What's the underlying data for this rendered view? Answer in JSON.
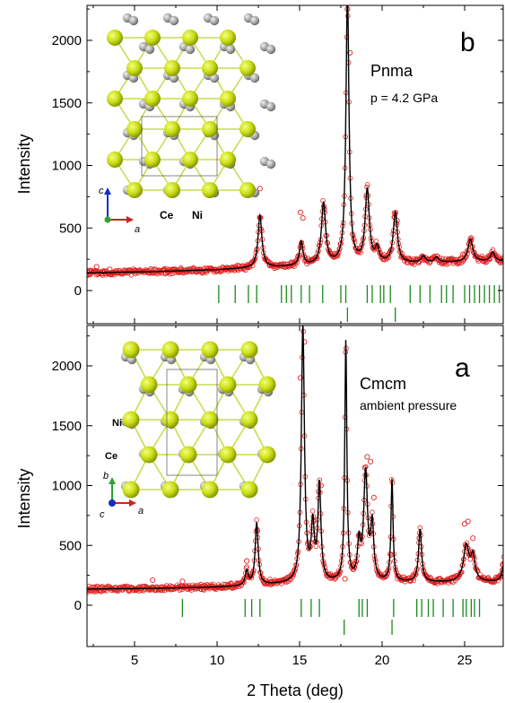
{
  "chart_data": [
    {
      "panel": "top",
      "type": "scatter",
      "panel_letter": "b",
      "space_group": "Pnma",
      "condition": "p = 4.2 GPa",
      "ylabel": "Intensity",
      "xlabel": "",
      "xlim": [
        2,
        27.6
      ],
      "ylim": [
        -300,
        2300
      ],
      "yticks": [
        0,
        500,
        1000,
        1500,
        2000
      ],
      "xticks": [
        5,
        10,
        15,
        20,
        25
      ],
      "inset_atom_labels": [
        "Ce",
        "Ni"
      ],
      "inset_axis_labels": [
        "c",
        "a"
      ],
      "background": [
        [
          2,
          140
        ],
        [
          6,
          150
        ],
        [
          10,
          165
        ],
        [
          11.5,
          175
        ],
        [
          13.5,
          185
        ],
        [
          16,
          200
        ],
        [
          19,
          215
        ],
        [
          22,
          220
        ],
        [
          27.6,
          235
        ]
      ],
      "peaks": [
        {
          "x": 12.6,
          "height": 420,
          "width": 0.28
        },
        {
          "x": 15.1,
          "height": 190,
          "width": 0.25
        },
        {
          "x": 16.45,
          "height": 490,
          "width": 0.3
        },
        {
          "x": 17.9,
          "height": 2150,
          "width": 0.22
        },
        {
          "x": 19.1,
          "height": 580,
          "width": 0.3
        },
        {
          "x": 19.7,
          "height": 110,
          "width": 0.25
        },
        {
          "x": 20.8,
          "height": 400,
          "width": 0.3
        },
        {
          "x": 22.5,
          "height": 50,
          "width": 0.3
        },
        {
          "x": 23.3,
          "height": 40,
          "width": 0.3
        },
        {
          "x": 25.35,
          "height": 180,
          "width": 0.35
        },
        {
          "x": 26.7,
          "height": 70,
          "width": 0.3
        }
      ],
      "obs_points": [
        [
          2.3,
          160
        ],
        [
          2.7,
          190
        ],
        [
          3.1,
          150
        ],
        [
          3.5,
          170
        ],
        [
          4.0,
          140
        ],
        [
          6.5,
          160
        ],
        [
          7.6,
          150
        ],
        [
          11.8,
          190
        ],
        [
          12.6,
          815
        ],
        [
          15.05,
          625
        ],
        [
          15.2,
          580
        ],
        [
          16.5,
          650
        ],
        [
          17.9,
          2250
        ],
        [
          18.05,
          1900
        ],
        [
          19.05,
          760
        ],
        [
          20.75,
          620
        ],
        [
          20.9,
          560
        ],
        [
          24.9,
          290
        ],
        [
          25.4,
          420
        ],
        [
          26.5,
          260
        ],
        [
          27.0,
          250
        ]
      ],
      "tick_rows": [
        {
          "color": "#1a8a1a",
          "positions": [
            10.1,
            11.1,
            11.9,
            12.4,
            13.9,
            14.2,
            14.5,
            15.1,
            15.6,
            16.4,
            17.5,
            17.8,
            19.1,
            19.4,
            19.9,
            20.1,
            20.5,
            21.7,
            22.3,
            22.9,
            23.6,
            23.9,
            24.3,
            25.0,
            25.3,
            25.6,
            25.9,
            26.2,
            26.5,
            26.8,
            27.1,
            27.4
          ]
        },
        {
          "color": "#1a8a1a",
          "positions": [
            17.9,
            20.8
          ]
        }
      ]
    },
    {
      "panel": "bottom",
      "type": "scatter",
      "panel_letter": "a",
      "space_group": "Cmcm",
      "condition": "ambient pressure",
      "ylabel": "Intensity",
      "xlabel": "2 Theta (deg)",
      "xlim": [
        2,
        27.6
      ],
      "ylim": [
        -300,
        2300
      ],
      "yticks": [
        0,
        500,
        1000,
        1500,
        2000
      ],
      "xticks": [
        5,
        10,
        15,
        20,
        25
      ],
      "inset_atom_labels": [
        "Ni",
        "Ce"
      ],
      "inset_axis_labels": [
        "b",
        "c",
        "a"
      ],
      "background": [
        [
          2,
          135
        ],
        [
          6,
          140
        ],
        [
          10,
          150
        ],
        [
          12,
          160
        ],
        [
          14,
          175
        ],
        [
          17,
          185
        ],
        [
          20,
          190
        ],
        [
          24,
          190
        ],
        [
          27.6,
          195
        ]
      ],
      "peaks": [
        {
          "x": 11.8,
          "height": 120,
          "width": 0.22
        },
        {
          "x": 12.4,
          "height": 520,
          "width": 0.22
        },
        {
          "x": 15.2,
          "height": 2150,
          "width": 0.22
        },
        {
          "x": 15.8,
          "height": 450,
          "width": 0.22
        },
        {
          "x": 16.2,
          "height": 800,
          "width": 0.22
        },
        {
          "x": 17.8,
          "height": 2000,
          "width": 0.15
        },
        {
          "x": 18.6,
          "height": 300,
          "width": 0.22
        },
        {
          "x": 19.0,
          "height": 900,
          "width": 0.28
        },
        {
          "x": 19.4,
          "height": 450,
          "width": 0.22
        },
        {
          "x": 20.6,
          "height": 850,
          "width": 0.15
        },
        {
          "x": 22.3,
          "height": 440,
          "width": 0.22
        },
        {
          "x": 25.1,
          "height": 300,
          "width": 0.4
        },
        {
          "x": 25.5,
          "height": 200,
          "width": 0.3
        },
        {
          "x": 27.4,
          "height": 180,
          "width": 0.25
        }
      ],
      "obs_points": [
        [
          6.1,
          210
        ],
        [
          7.9,
          200
        ],
        [
          11.8,
          370
        ],
        [
          12.45,
          620
        ],
        [
          15.05,
          1900
        ],
        [
          15.3,
          2200
        ],
        [
          15.85,
          700
        ],
        [
          16.15,
          950
        ],
        [
          16.3,
          1000
        ],
        [
          17.75,
          220
        ],
        [
          18.65,
          520
        ],
        [
          18.95,
          1150
        ],
        [
          19.1,
          1240
        ],
        [
          19.3,
          1200
        ],
        [
          19.5,
          900
        ],
        [
          20.55,
          420
        ],
        [
          22.25,
          560
        ],
        [
          25.0,
          680
        ],
        [
          25.2,
          700
        ],
        [
          25.5,
          560
        ],
        [
          27.3,
          340
        ]
      ],
      "tick_rows": [
        {
          "color": "#1a8a1a",
          "positions": [
            7.9,
            11.7,
            12.1,
            12.6,
            15.1,
            15.7,
            16.2,
            18.6,
            18.8,
            19.1,
            20.7,
            22.1,
            22.4,
            22.8,
            23.1,
            23.7,
            24.3,
            24.9,
            25.1,
            25.4,
            25.6,
            25.9,
            27.5
          ]
        },
        {
          "color": "#1a8a1a",
          "positions": [
            17.7,
            20.6
          ]
        }
      ]
    }
  ],
  "colors": {
    "observed": "#e02020",
    "calculated": "#000000",
    "ticks": "#1a8a1a",
    "ce_atom": "#c8dc14",
    "ni_atom": "#a0a0a0",
    "bond": "#c8dc50"
  }
}
